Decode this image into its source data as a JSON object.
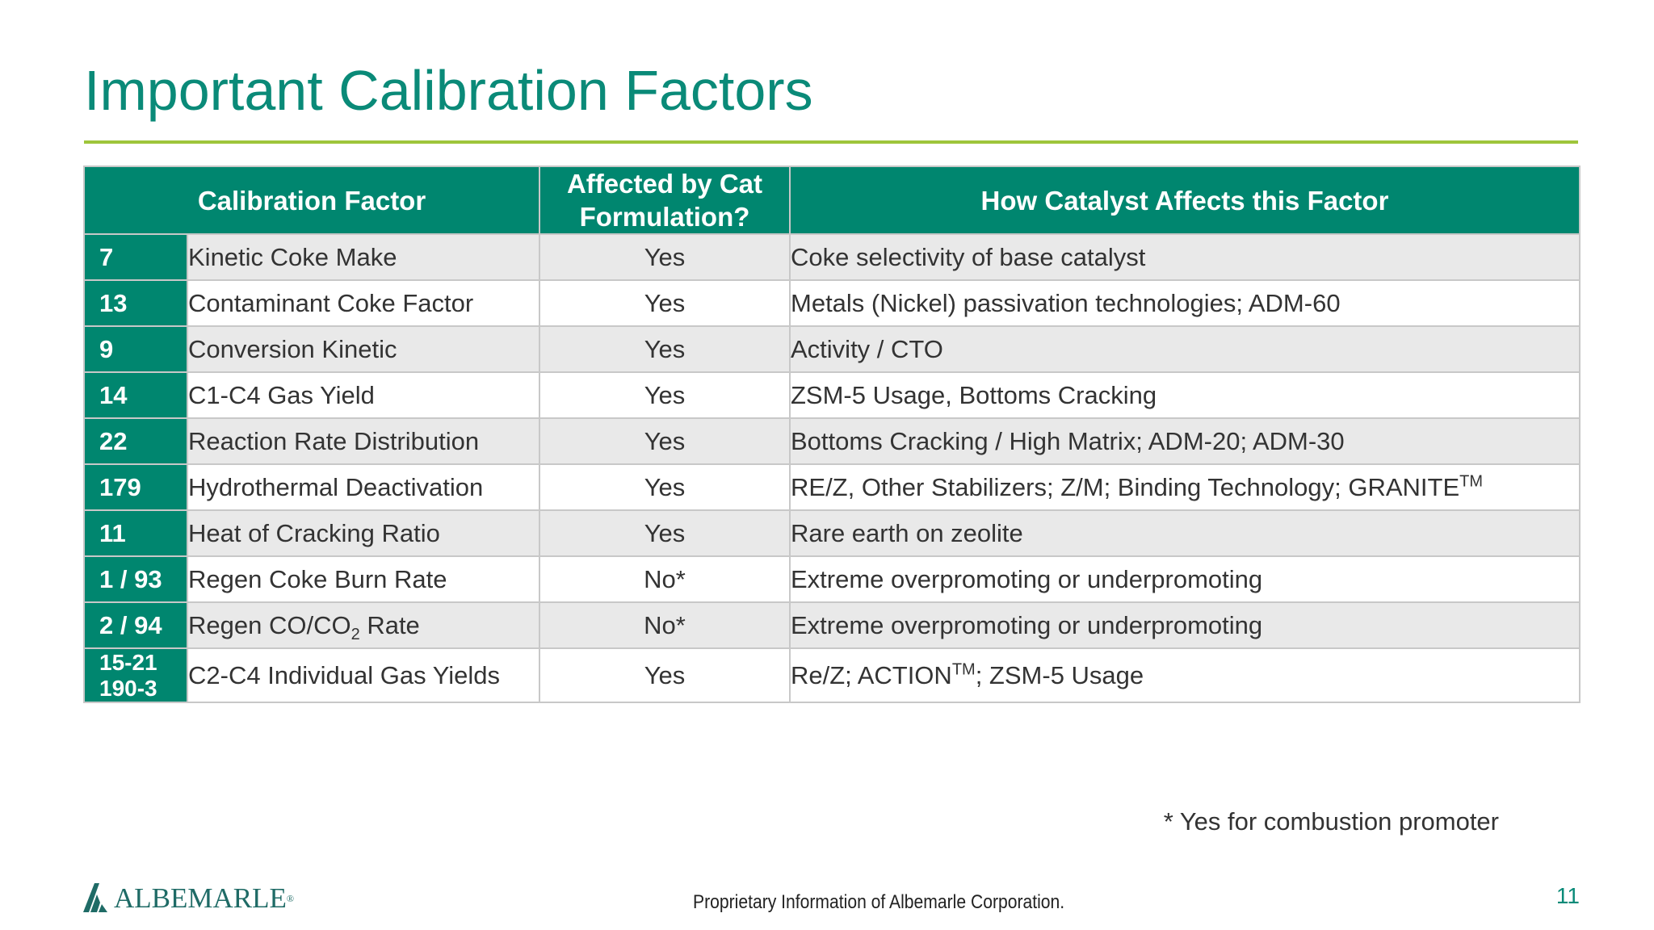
{
  "title": "Important Calibration Factors",
  "table": {
    "headers": {
      "factor": "Calibration Factor",
      "affected_line1": "Affected by Cat",
      "affected_line2": "Formulation?",
      "how": "How Catalyst Affects this Factor"
    },
    "rows": [
      {
        "num": "7",
        "factor": "Kinetic Coke Make",
        "affected": "Yes",
        "how": "Coke selectivity of base catalyst"
      },
      {
        "num": "13",
        "factor": "Contaminant Coke Factor",
        "affected": "Yes",
        "how": "Metals (Nickel) passivation technologies; ADM-60"
      },
      {
        "num": "9",
        "factor": "Conversion Kinetic",
        "affected": "Yes",
        "how": "Activity / CTO"
      },
      {
        "num": "14",
        "factor": "C1-C4 Gas Yield",
        "affected": "Yes",
        "how": "ZSM-5 Usage, Bottoms Cracking"
      },
      {
        "num": "22",
        "factor": "Reaction Rate Distribution",
        "affected": "Yes",
        "how": "Bottoms Cracking / High Matrix; ADM-20; ADM-30"
      },
      {
        "num": "179",
        "factor": "Hydrothermal Deactivation",
        "affected": "Yes",
        "how": "RE/Z, Other Stabilizers; Z/M; Binding Technology; GRANITE",
        "how_sup": "TM"
      },
      {
        "num": "11",
        "factor": "Heat of Cracking Ratio",
        "affected": "Yes",
        "how": "Rare earth on zeolite"
      },
      {
        "num": "1 / 93",
        "factor": "Regen Coke Burn Rate",
        "affected": "No*",
        "how": "Extreme overpromoting or underpromoting"
      },
      {
        "num": "2 / 94",
        "factor_pre": "Regen CO/CO",
        "factor_sub": "2",
        "factor_post": " Rate",
        "affected": "No*",
        "how": "Extreme overpromoting or underpromoting"
      },
      {
        "num_line1": "15-21",
        "num_line2": "190-3",
        "factor": "C2-C4 Individual Gas Yields",
        "affected": "Yes",
        "how_pre": "Re/Z; ACTION",
        "how_sup": "TM",
        "how_post": "; ZSM-5 Usage"
      }
    ]
  },
  "footnote": "* Yes for combustion promoter",
  "footer": {
    "logo_text": "ALBEMARLE",
    "logo_reg": "®",
    "proprietary": "Proprietary Information of Albemarle Corporation.",
    "page_number": "11"
  },
  "colors": {
    "brand_teal": "#00866f",
    "accent_green": "#9ec53b"
  }
}
